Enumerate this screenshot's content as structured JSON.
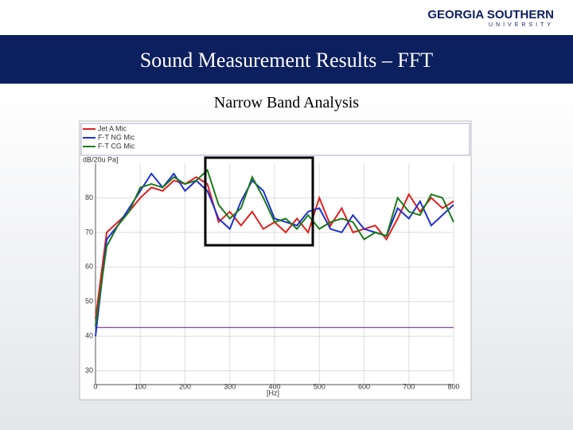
{
  "header": {
    "logo_name": "GEORGIA SOUTHERN",
    "logo_sub": "UNIVERSITY",
    "title": "Sound Measurement Results – FFT"
  },
  "chart_data": {
    "type": "line",
    "title": "Narrow Band Analysis",
    "y_label": "dB/20u Pa]",
    "x_label": "[Hz]",
    "x": [
      0,
      25,
      50,
      75,
      100,
      125,
      150,
      175,
      200,
      225,
      250,
      275,
      300,
      325,
      350,
      375,
      400,
      425,
      450,
      475,
      500,
      525,
      550,
      575,
      600,
      625,
      650,
      675,
      700,
      725,
      750,
      775,
      800
    ],
    "series": [
      {
        "name": "Jet A Mic",
        "color": "#e02020",
        "values": [
          45,
          70,
          73,
          76,
          80,
          83,
          82,
          85,
          84,
          86,
          84,
          73,
          76,
          72,
          76,
          71,
          73,
          70,
          74,
          70,
          80,
          72,
          77,
          70,
          71,
          72,
          68,
          74,
          81,
          76,
          80,
          77,
          79
        ]
      },
      {
        "name": "F-T NG Mic",
        "color": "#2030d0",
        "values": [
          40,
          68,
          72,
          77,
          82,
          87,
          83,
          87,
          82,
          85,
          82,
          74,
          71,
          79,
          85,
          82,
          74,
          73,
          72,
          76,
          77,
          71,
          70,
          75,
          71,
          70,
          69,
          77,
          74,
          79,
          72,
          75,
          78
        ]
      },
      {
        "name": "F-T CG Mic",
        "color": "#1a7a1a",
        "values": [
          43,
          66,
          72,
          76,
          83,
          84,
          83,
          86,
          84,
          85,
          88,
          78,
          74,
          77,
          86,
          80,
          73,
          74,
          71,
          75,
          71,
          73,
          74,
          73,
          68,
          70,
          69,
          80,
          76,
          75,
          81,
          80,
          73
        ]
      }
    ],
    "hline": {
      "value": 42.5,
      "color": "#7030a0"
    },
    "xlim": [
      0,
      800
    ],
    "xticks": [
      0,
      100,
      200,
      300,
      400,
      500,
      600,
      700,
      800
    ],
    "ylim": [
      26,
      90
    ],
    "yticks": [
      30,
      40,
      50,
      60,
      70,
      80
    ],
    "grid": true
  }
}
